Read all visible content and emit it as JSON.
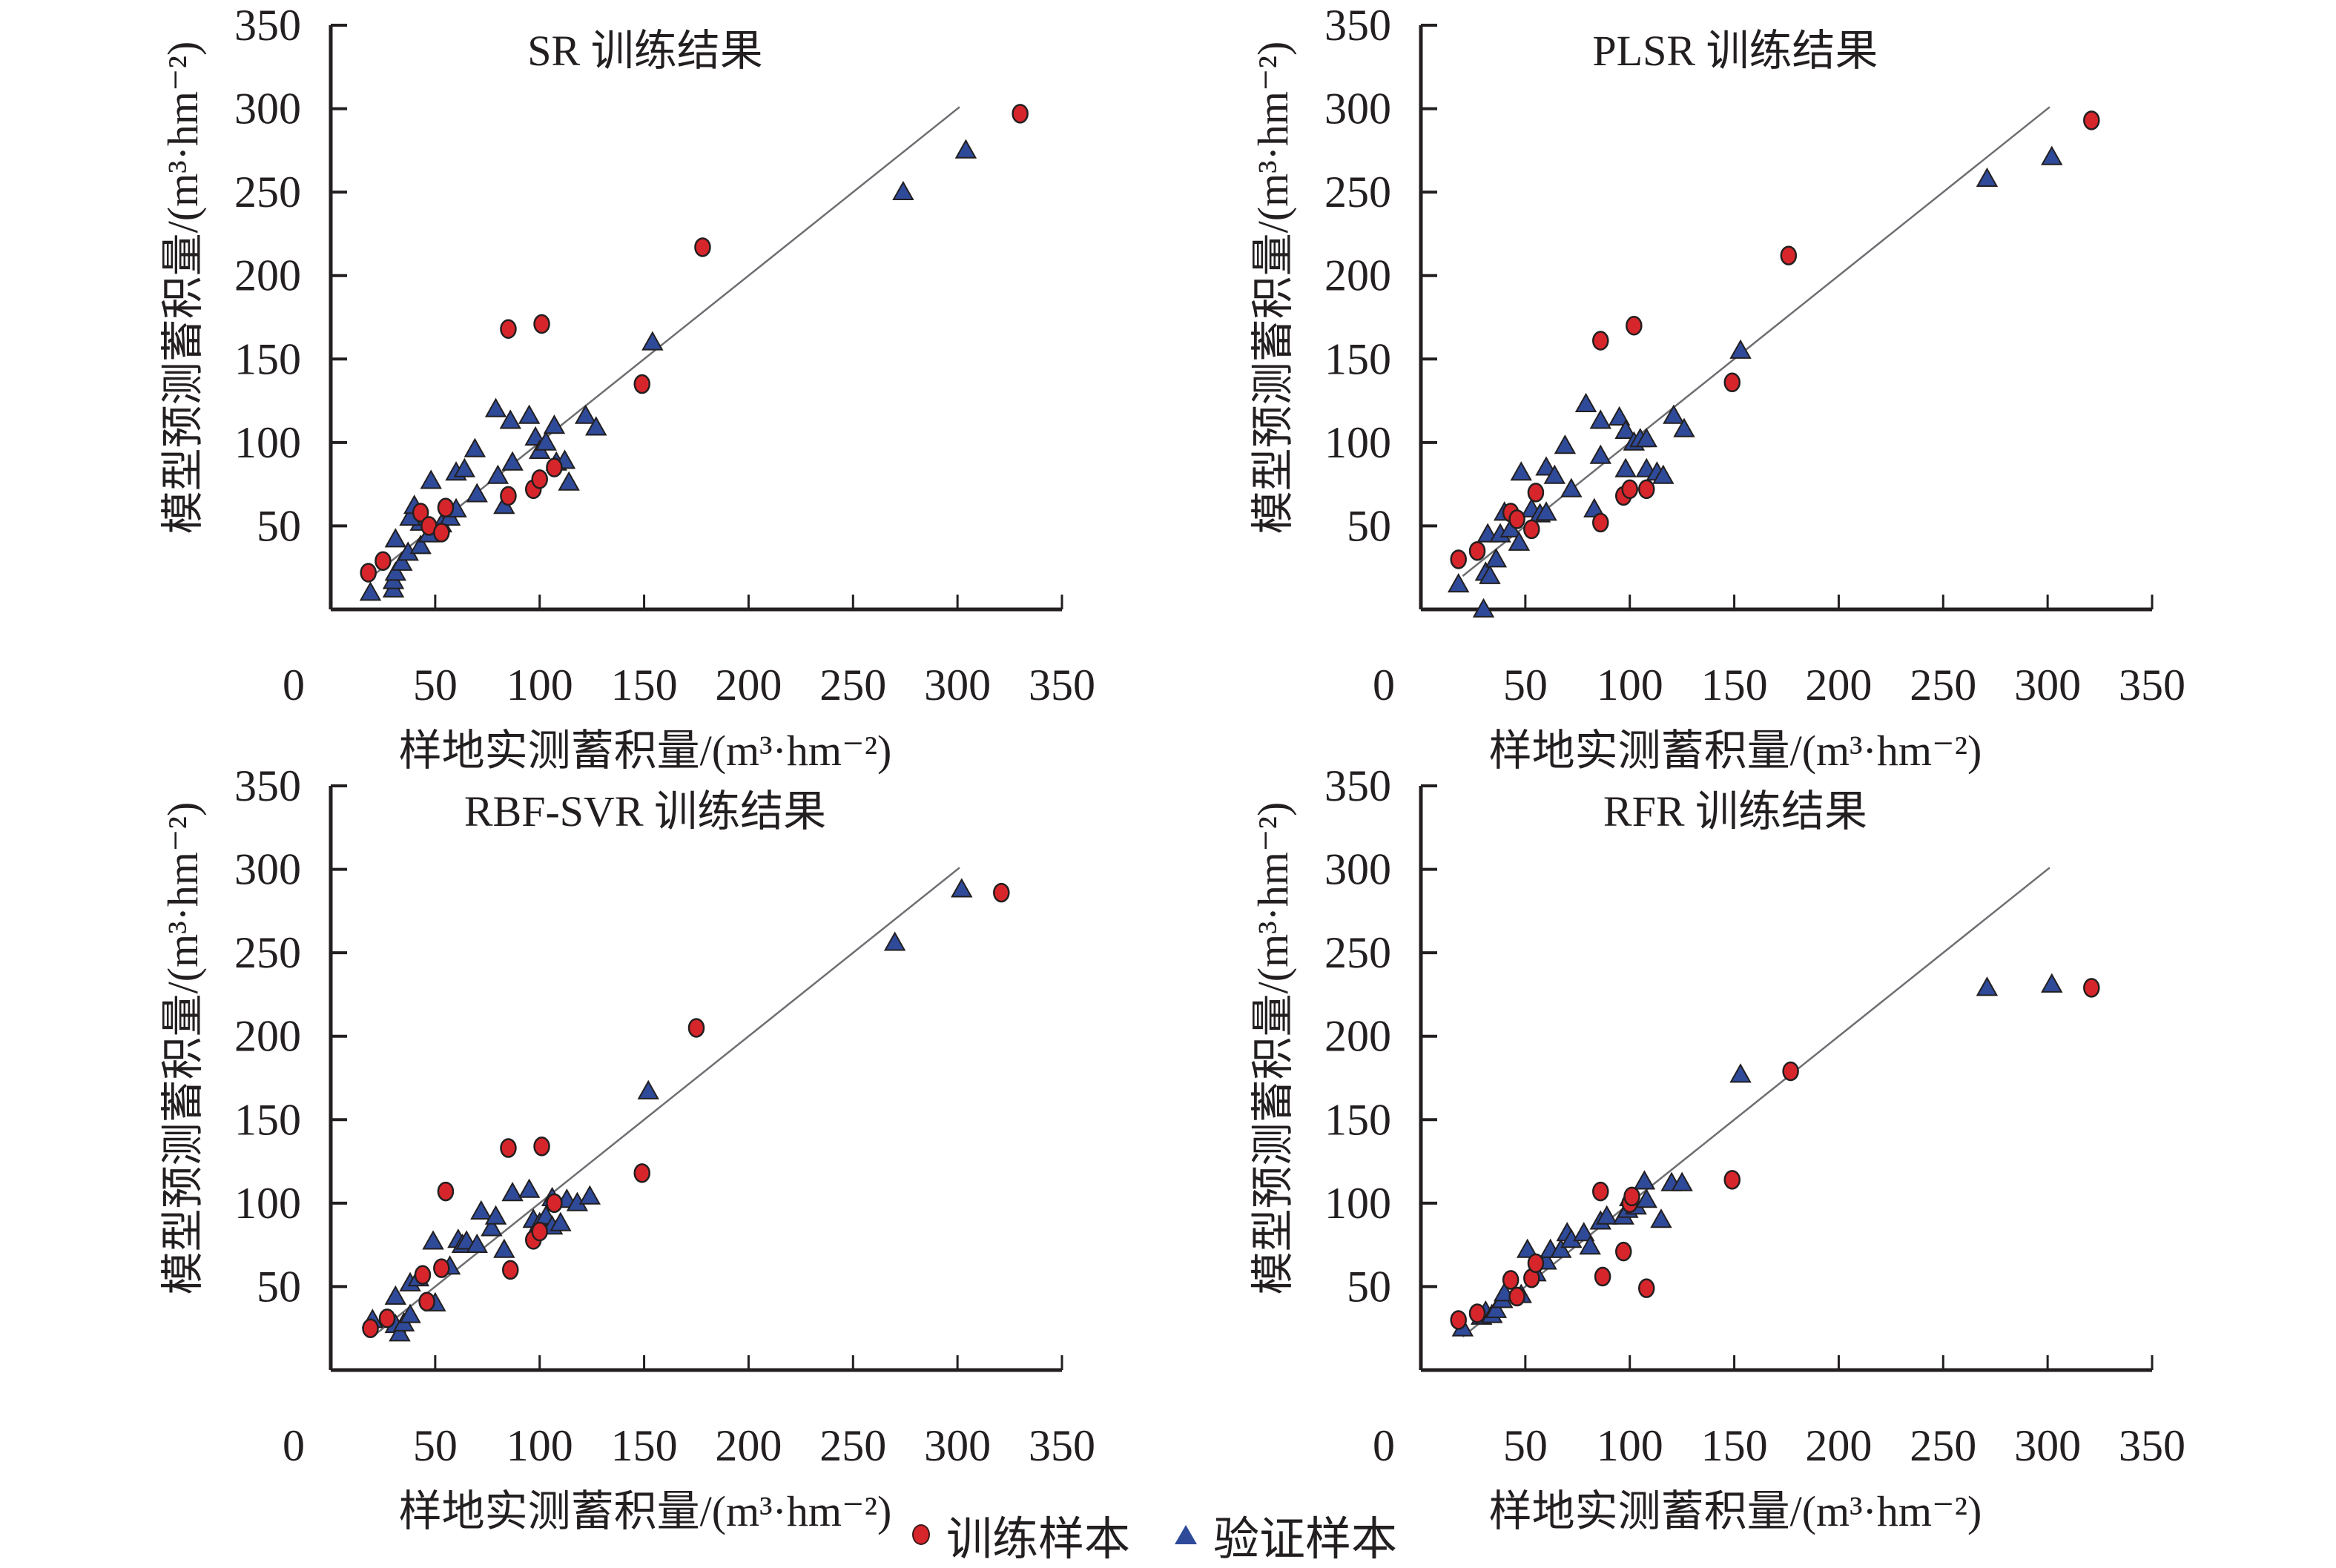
{
  "legend": {
    "training_label": "训练样本",
    "validation_label": "验证样本"
  },
  "colors": {
    "training": "#d7262b",
    "validation": "#2e4a99",
    "marker_edge": "#231f20",
    "reference_line": "#6d6e71",
    "axis": "#231f20"
  },
  "chart_data": [
    {
      "type": "scatter",
      "title": "SR 训练结果",
      "xlabel": "样地实测蓄积量/(m³·hm⁻²)",
      "ylabel": "模型预测蓄积量/(m³·hm⁻²)",
      "xlim": [
        0,
        350
      ],
      "ylim": [
        0,
        350
      ],
      "xticks": [
        0,
        50,
        100,
        150,
        200,
        250,
        300,
        350
      ],
      "yticks": [
        50,
        100,
        150,
        200,
        250,
        300,
        350
      ],
      "reference_line": {
        "x": [
          20,
          301
        ],
        "y": [
          20,
          301
        ]
      },
      "series": [
        {
          "name": "训练样本",
          "marker": "circle",
          "points": [
            [
              18,
              22
            ],
            [
              25,
              29
            ],
            [
              43,
              58
            ],
            [
              47,
              50
            ],
            [
              53,
              46
            ],
            [
              55,
              61
            ],
            [
              85,
              68
            ],
            [
              97,
              72
            ],
            [
              100,
              78
            ],
            [
              107,
              85
            ],
            [
              85,
              168
            ],
            [
              101,
              171
            ],
            [
              149,
              135
            ],
            [
              178,
              217
            ],
            [
              330,
              297
            ]
          ]
        },
        {
          "name": "验证样本",
          "marker": "triangle",
          "points": [
            [
              19,
              10
            ],
            [
              30,
              12
            ],
            [
              30,
              17
            ],
            [
              31,
              22
            ],
            [
              34,
              28
            ],
            [
              37,
              34
            ],
            [
              31,
              42
            ],
            [
              43,
              38
            ],
            [
              43,
              52
            ],
            [
              38,
              55
            ],
            [
              40,
              62
            ],
            [
              47,
              45
            ],
            [
              48,
              77
            ],
            [
              53,
              51
            ],
            [
              57,
              55
            ],
            [
              60,
              60
            ],
            [
              60,
              82
            ],
            [
              64,
              84
            ],
            [
              69,
              96
            ],
            [
              70,
              69
            ],
            [
              79,
              120
            ],
            [
              80,
              80
            ],
            [
              83,
              62
            ],
            [
              87,
              88
            ],
            [
              86,
              113
            ],
            [
              95,
              116
            ],
            [
              98,
              103
            ],
            [
              100,
              95
            ],
            [
              103,
              100
            ],
            [
              107,
              110
            ],
            [
              108,
              88
            ],
            [
              112,
              89
            ],
            [
              114,
              76
            ],
            [
              122,
              116
            ],
            [
              127,
              109
            ],
            [
              154,
              160
            ],
            [
              274,
              250
            ],
            [
              304,
              275
            ]
          ]
        }
      ]
    },
    {
      "type": "scatter",
      "title": "PLSR 训练结果",
      "xlabel": "样地实测蓄积量/(m³·hm⁻²)",
      "ylabel": "模型预测蓄积量/(m³·hm⁻²)",
      "xlim": [
        0,
        350
      ],
      "ylim": [
        0,
        350
      ],
      "xticks": [
        0,
        50,
        100,
        150,
        200,
        250,
        300,
        350
      ],
      "yticks": [
        50,
        100,
        150,
        200,
        250,
        300,
        350
      ],
      "reference_line": {
        "x": [
          20,
          301
        ],
        "y": [
          20,
          301
        ]
      },
      "series": [
        {
          "name": "训练样本",
          "marker": "circle",
          "points": [
            [
              18,
              30
            ],
            [
              27,
              35
            ],
            [
              43,
              58
            ],
            [
              46,
              54
            ],
            [
              53,
              48
            ],
            [
              55,
              70
            ],
            [
              86,
              52
            ],
            [
              97,
              68
            ],
            [
              100,
              72
            ],
            [
              108,
              72
            ],
            [
              86,
              161
            ],
            [
              102,
              170
            ],
            [
              149,
              136
            ],
            [
              176,
              212
            ],
            [
              321,
              293
            ]
          ]
        },
        {
          "name": "验证样本",
          "marker": "triangle",
          "points": [
            [
              18,
              15
            ],
            [
              30,
              0
            ],
            [
              31,
              22
            ],
            [
              33,
              20
            ],
            [
              36,
              30
            ],
            [
              32,
              45
            ],
            [
              38,
              45
            ],
            [
              40,
              58
            ],
            [
              43,
              48
            ],
            [
              47,
              40
            ],
            [
              48,
              82
            ],
            [
              53,
              60
            ],
            [
              57,
              57
            ],
            [
              60,
              58
            ],
            [
              60,
              85
            ],
            [
              64,
              80
            ],
            [
              69,
              98
            ],
            [
              72,
              72
            ],
            [
              79,
              123
            ],
            [
              83,
              60
            ],
            [
              86,
              113
            ],
            [
              86,
              92
            ],
            [
              95,
              115
            ],
            [
              98,
              107
            ],
            [
              98,
              84
            ],
            [
              102,
              100
            ],
            [
              105,
              102
            ],
            [
              108,
              102
            ],
            [
              108,
              84
            ],
            [
              113,
              82
            ],
            [
              116,
              80
            ],
            [
              121,
              116
            ],
            [
              126,
              108
            ],
            [
              153,
              155
            ],
            [
              271,
              258
            ],
            [
              302,
              271
            ]
          ]
        }
      ]
    },
    {
      "type": "scatter",
      "title": "RBF-SVR 训练结果",
      "xlabel": "样地实测蓄积量/(m³·hm⁻²)",
      "ylabel": "模型预测蓄积量/(m³·hm⁻²)",
      "xlim": [
        0,
        350
      ],
      "ylim": [
        0,
        350
      ],
      "xticks": [
        0,
        50,
        100,
        150,
        200,
        250,
        300,
        350
      ],
      "yticks": [
        50,
        100,
        150,
        200,
        250,
        300,
        350
      ],
      "reference_line": {
        "x": [
          20,
          301
        ],
        "y": [
          20,
          301
        ]
      },
      "series": [
        {
          "name": "训练样本",
          "marker": "circle",
          "points": [
            [
              19,
              25
            ],
            [
              27,
              31
            ],
            [
              44,
              57
            ],
            [
              46,
              41
            ],
            [
              53,
              61
            ],
            [
              55,
              107
            ],
            [
              85,
              133
            ],
            [
              86,
              60
            ],
            [
              97,
              78
            ],
            [
              100,
              83
            ],
            [
              101,
              134
            ],
            [
              107,
              100
            ],
            [
              149,
              118
            ],
            [
              175,
              205
            ],
            [
              321,
              286
            ]
          ]
        },
        {
          "name": "验证样本",
          "marker": "triangle",
          "points": [
            [
              20,
              30
            ],
            [
              31,
              44
            ],
            [
              31,
              27
            ],
            [
              33,
              22
            ],
            [
              35,
              28
            ],
            [
              38,
              33
            ],
            [
              38,
              52
            ],
            [
              42,
              55
            ],
            [
              49,
              77
            ],
            [
              50,
              40
            ],
            [
              57,
              62
            ],
            [
              61,
              78
            ],
            [
              63,
              75
            ],
            [
              65,
              77
            ],
            [
              70,
              75
            ],
            [
              72,
              95
            ],
            [
              77,
              85
            ],
            [
              79,
              92
            ],
            [
              83,
              72
            ],
            [
              87,
              106
            ],
            [
              95,
              108
            ],
            [
              97,
              90
            ],
            [
              100,
              88
            ],
            [
              103,
              92
            ],
            [
              106,
              103
            ],
            [
              106,
              86
            ],
            [
              110,
              88
            ],
            [
              113,
              102
            ],
            [
              118,
              100
            ],
            [
              124,
              104
            ],
            [
              152,
              167
            ],
            [
              270,
              256
            ],
            [
              302,
              288
            ]
          ]
        }
      ]
    },
    {
      "type": "scatter",
      "title": "RFR 训练结果",
      "xlabel": "样地实测蓄积量/(m³·hm⁻²)",
      "ylabel": "模型预测蓄积量/(m³·hm⁻²)",
      "xlim": [
        0,
        350
      ],
      "ylim": [
        0,
        350
      ],
      "xticks": [
        0,
        50,
        100,
        150,
        200,
        250,
        300,
        350
      ],
      "yticks": [
        50,
        100,
        150,
        200,
        250,
        300,
        350
      ],
      "reference_line": {
        "x": [
          20,
          301
        ],
        "y": [
          20,
          301
        ]
      },
      "series": [
        {
          "name": "训练样本",
          "marker": "circle",
          "points": [
            [
              18,
              30
            ],
            [
              27,
              34
            ],
            [
              43,
              54
            ],
            [
              46,
              44
            ],
            [
              53,
              55
            ],
            [
              55,
              64
            ],
            [
              86,
              107
            ],
            [
              87,
              56
            ],
            [
              97,
              71
            ],
            [
              100,
              100
            ],
            [
              101,
              104
            ],
            [
              108,
              49
            ],
            [
              149,
              114
            ],
            [
              177,
              179
            ],
            [
              321,
              229
            ]
          ]
        },
        {
          "name": "验证样本",
          "marker": "triangle",
          "points": [
            [
              20,
              25
            ],
            [
              29,
              32
            ],
            [
              31,
              35
            ],
            [
              34,
              33
            ],
            [
              36,
              36
            ],
            [
              39,
              42
            ],
            [
              40,
              46
            ],
            [
              48,
              45
            ],
            [
              51,
              72
            ],
            [
              55,
              58
            ],
            [
              60,
              65
            ],
            [
              62,
              72
            ],
            [
              67,
              72
            ],
            [
              70,
              82
            ],
            [
              72,
              78
            ],
            [
              78,
              82
            ],
            [
              81,
              74
            ],
            [
              86,
              89
            ],
            [
              89,
              92
            ],
            [
              97,
              92
            ],
            [
              99,
              96
            ],
            [
              100,
              103
            ],
            [
              103,
              98
            ],
            [
              107,
              113
            ],
            [
              108,
              102
            ],
            [
              115,
              90
            ],
            [
              120,
              112
            ],
            [
              125,
              112
            ],
            [
              153,
              177
            ],
            [
              271,
              229
            ],
            [
              302,
              231
            ]
          ]
        }
      ]
    }
  ]
}
